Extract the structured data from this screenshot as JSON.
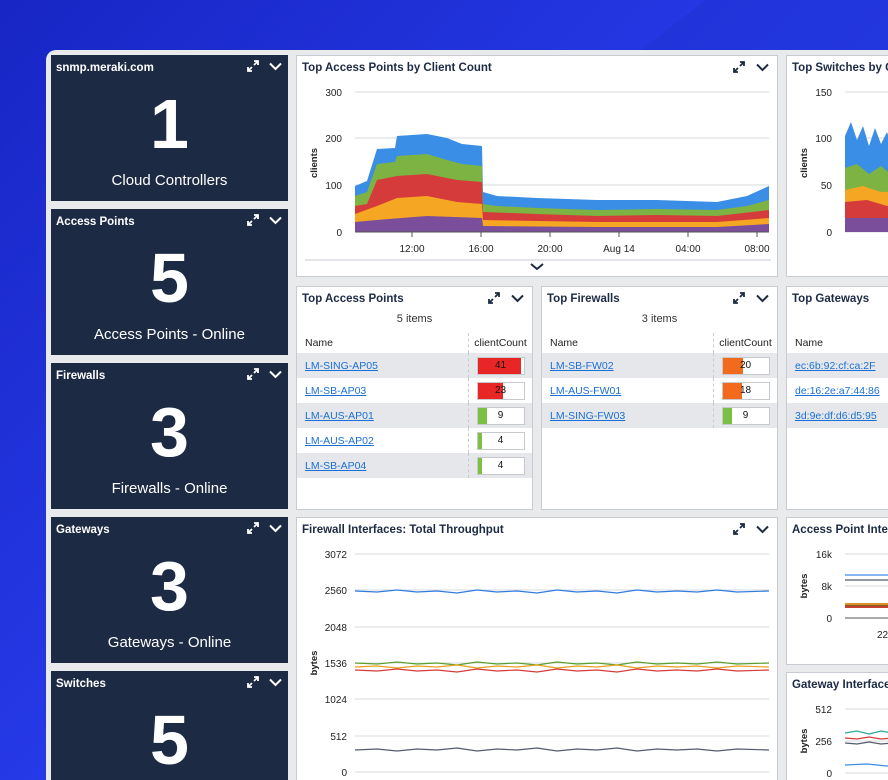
{
  "tiles": [
    {
      "title": "snmp.meraki.com",
      "value": "1",
      "caption": "Cloud Controllers"
    },
    {
      "title": "Access Points",
      "value": "5",
      "caption": "Access Points - Online"
    },
    {
      "title": "Firewalls",
      "value": "3",
      "caption": "Firewalls - Online"
    },
    {
      "title": "Gateways",
      "value": "3",
      "caption": "Gateways - Online"
    },
    {
      "title": "Switches",
      "value": "5",
      "caption": ""
    }
  ],
  "widgets": {
    "top_ap_chart": {
      "title": "Top Access Points by Client Count",
      "ylabel": "clients",
      "yticks": [
        "300",
        "200",
        "100",
        "0"
      ],
      "xticks": [
        "12:00",
        "16:00",
        "20:00",
        "Aug 14",
        "04:00",
        "08:00"
      ]
    },
    "top_switches": {
      "title": "Top Switches by C",
      "ylabel": "clients",
      "yticks": [
        "150",
        "100",
        "50",
        "0"
      ]
    },
    "top_access_points": {
      "title": "Top Access Points",
      "count": "5 items",
      "col_name": "Name",
      "col_value": "clientCount",
      "rows": [
        {
          "name": "LM-SING-AP05",
          "value": "41",
          "level": 0.95,
          "color": "#e82626"
        },
        {
          "name": "LM-SB-AP03",
          "value": "23",
          "level": 0.56,
          "color": "#e82626"
        },
        {
          "name": "LM-AUS-AP01",
          "value": "9",
          "level": 0.2,
          "color": "#7bbf44"
        },
        {
          "name": "LM-AUS-AP02",
          "value": "4",
          "level": 0.1,
          "color": "#7bbf44"
        },
        {
          "name": "LM-SB-AP04",
          "value": "4",
          "level": 0.1,
          "color": "#7bbf44"
        }
      ]
    },
    "top_firewalls": {
      "title": "Top Firewalls",
      "count": "3 items",
      "col_name": "Name",
      "col_value": "clientCount",
      "rows": [
        {
          "name": "LM-SB-FW02",
          "value": "20",
          "level": 0.45,
          "color": "#f26b1d"
        },
        {
          "name": "LM-AUS-FW01",
          "value": "18",
          "level": 0.42,
          "color": "#f26b1d"
        },
        {
          "name": "LM-SING-FW03",
          "value": "9",
          "level": 0.2,
          "color": "#7bbf44"
        }
      ]
    },
    "top_gateways": {
      "title": "Top Gateways",
      "col_name": "Name",
      "rows": [
        {
          "name": "ec:6b:92:cf:ca:2F"
        },
        {
          "name": "de:16:2e:a7:44:86"
        },
        {
          "name": "3d:9e:df:d6:d5:95"
        }
      ]
    },
    "fw_throughput": {
      "title": "Firewall Interfaces: Total Throughput",
      "ylabel": "bytes",
      "yticks": [
        "3072",
        "2560",
        "2048",
        "1536",
        "1024",
        "512",
        "0"
      ]
    },
    "ap_interfaces": {
      "title": "Access Point Inter",
      "ylabel": "bytes",
      "yticks": [
        "16k",
        "8k",
        "0"
      ],
      "xtick": "22"
    },
    "gw_interfaces": {
      "title": "Gateway Interface",
      "ylabel": "bytes",
      "yticks": [
        "512",
        "256",
        "0"
      ]
    }
  },
  "colors": {
    "tile_bg": "#1d2a44",
    "link": "#1a6fd6",
    "page_bg": "#2a3ef0"
  }
}
